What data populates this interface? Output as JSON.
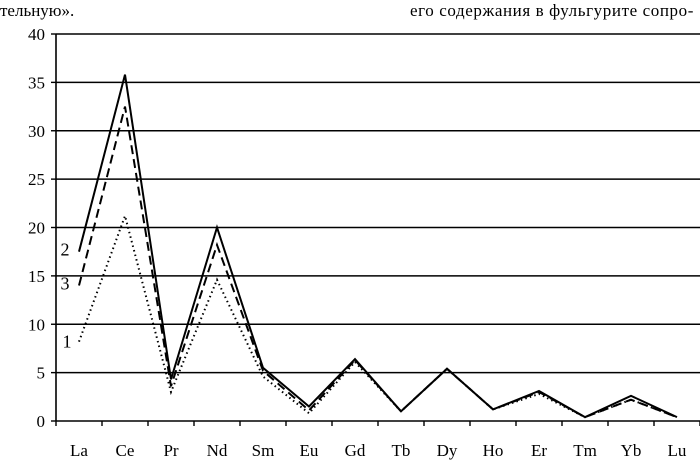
{
  "page": {
    "snippet_left": "тельную».",
    "snippet_right": "его содержания в фульгурите сопро-"
  },
  "chart_data": {
    "type": "line",
    "title": "",
    "xlabel": "",
    "ylabel": "",
    "categories": [
      "La",
      "Ce",
      "Pr",
      "Nd",
      "Sm",
      "Eu",
      "Gd",
      "Tb",
      "Dy",
      "Ho",
      "Er",
      "Tm",
      "Yb",
      "Lu"
    ],
    "ylim": [
      0,
      40
    ],
    "yticks": [
      "0",
      "5",
      "10",
      "15",
      "20",
      "25",
      "30",
      "35",
      "40"
    ],
    "grid": true,
    "series": [
      {
        "name": "1",
        "style": "dotted",
        "values": [
          8.2,
          21.2,
          3.0,
          14.6,
          4.6,
          0.8,
          6.1,
          1.0,
          5.4,
          1.2,
          2.8,
          0.4,
          2.2,
          0.4
        ]
      },
      {
        "name": "2",
        "style": "solid",
        "values": [
          17.5,
          35.8,
          4.3,
          20.0,
          5.5,
          1.5,
          6.4,
          1.0,
          5.4,
          1.2,
          3.1,
          0.4,
          2.6,
          0.4
        ]
      },
      {
        "name": "3",
        "style": "dashed",
        "values": [
          14.0,
          32.5,
          3.6,
          18.2,
          5.2,
          1.1,
          6.3,
          1.0,
          5.4,
          1.2,
          3.0,
          0.4,
          2.2,
          0.4
        ]
      }
    ]
  }
}
